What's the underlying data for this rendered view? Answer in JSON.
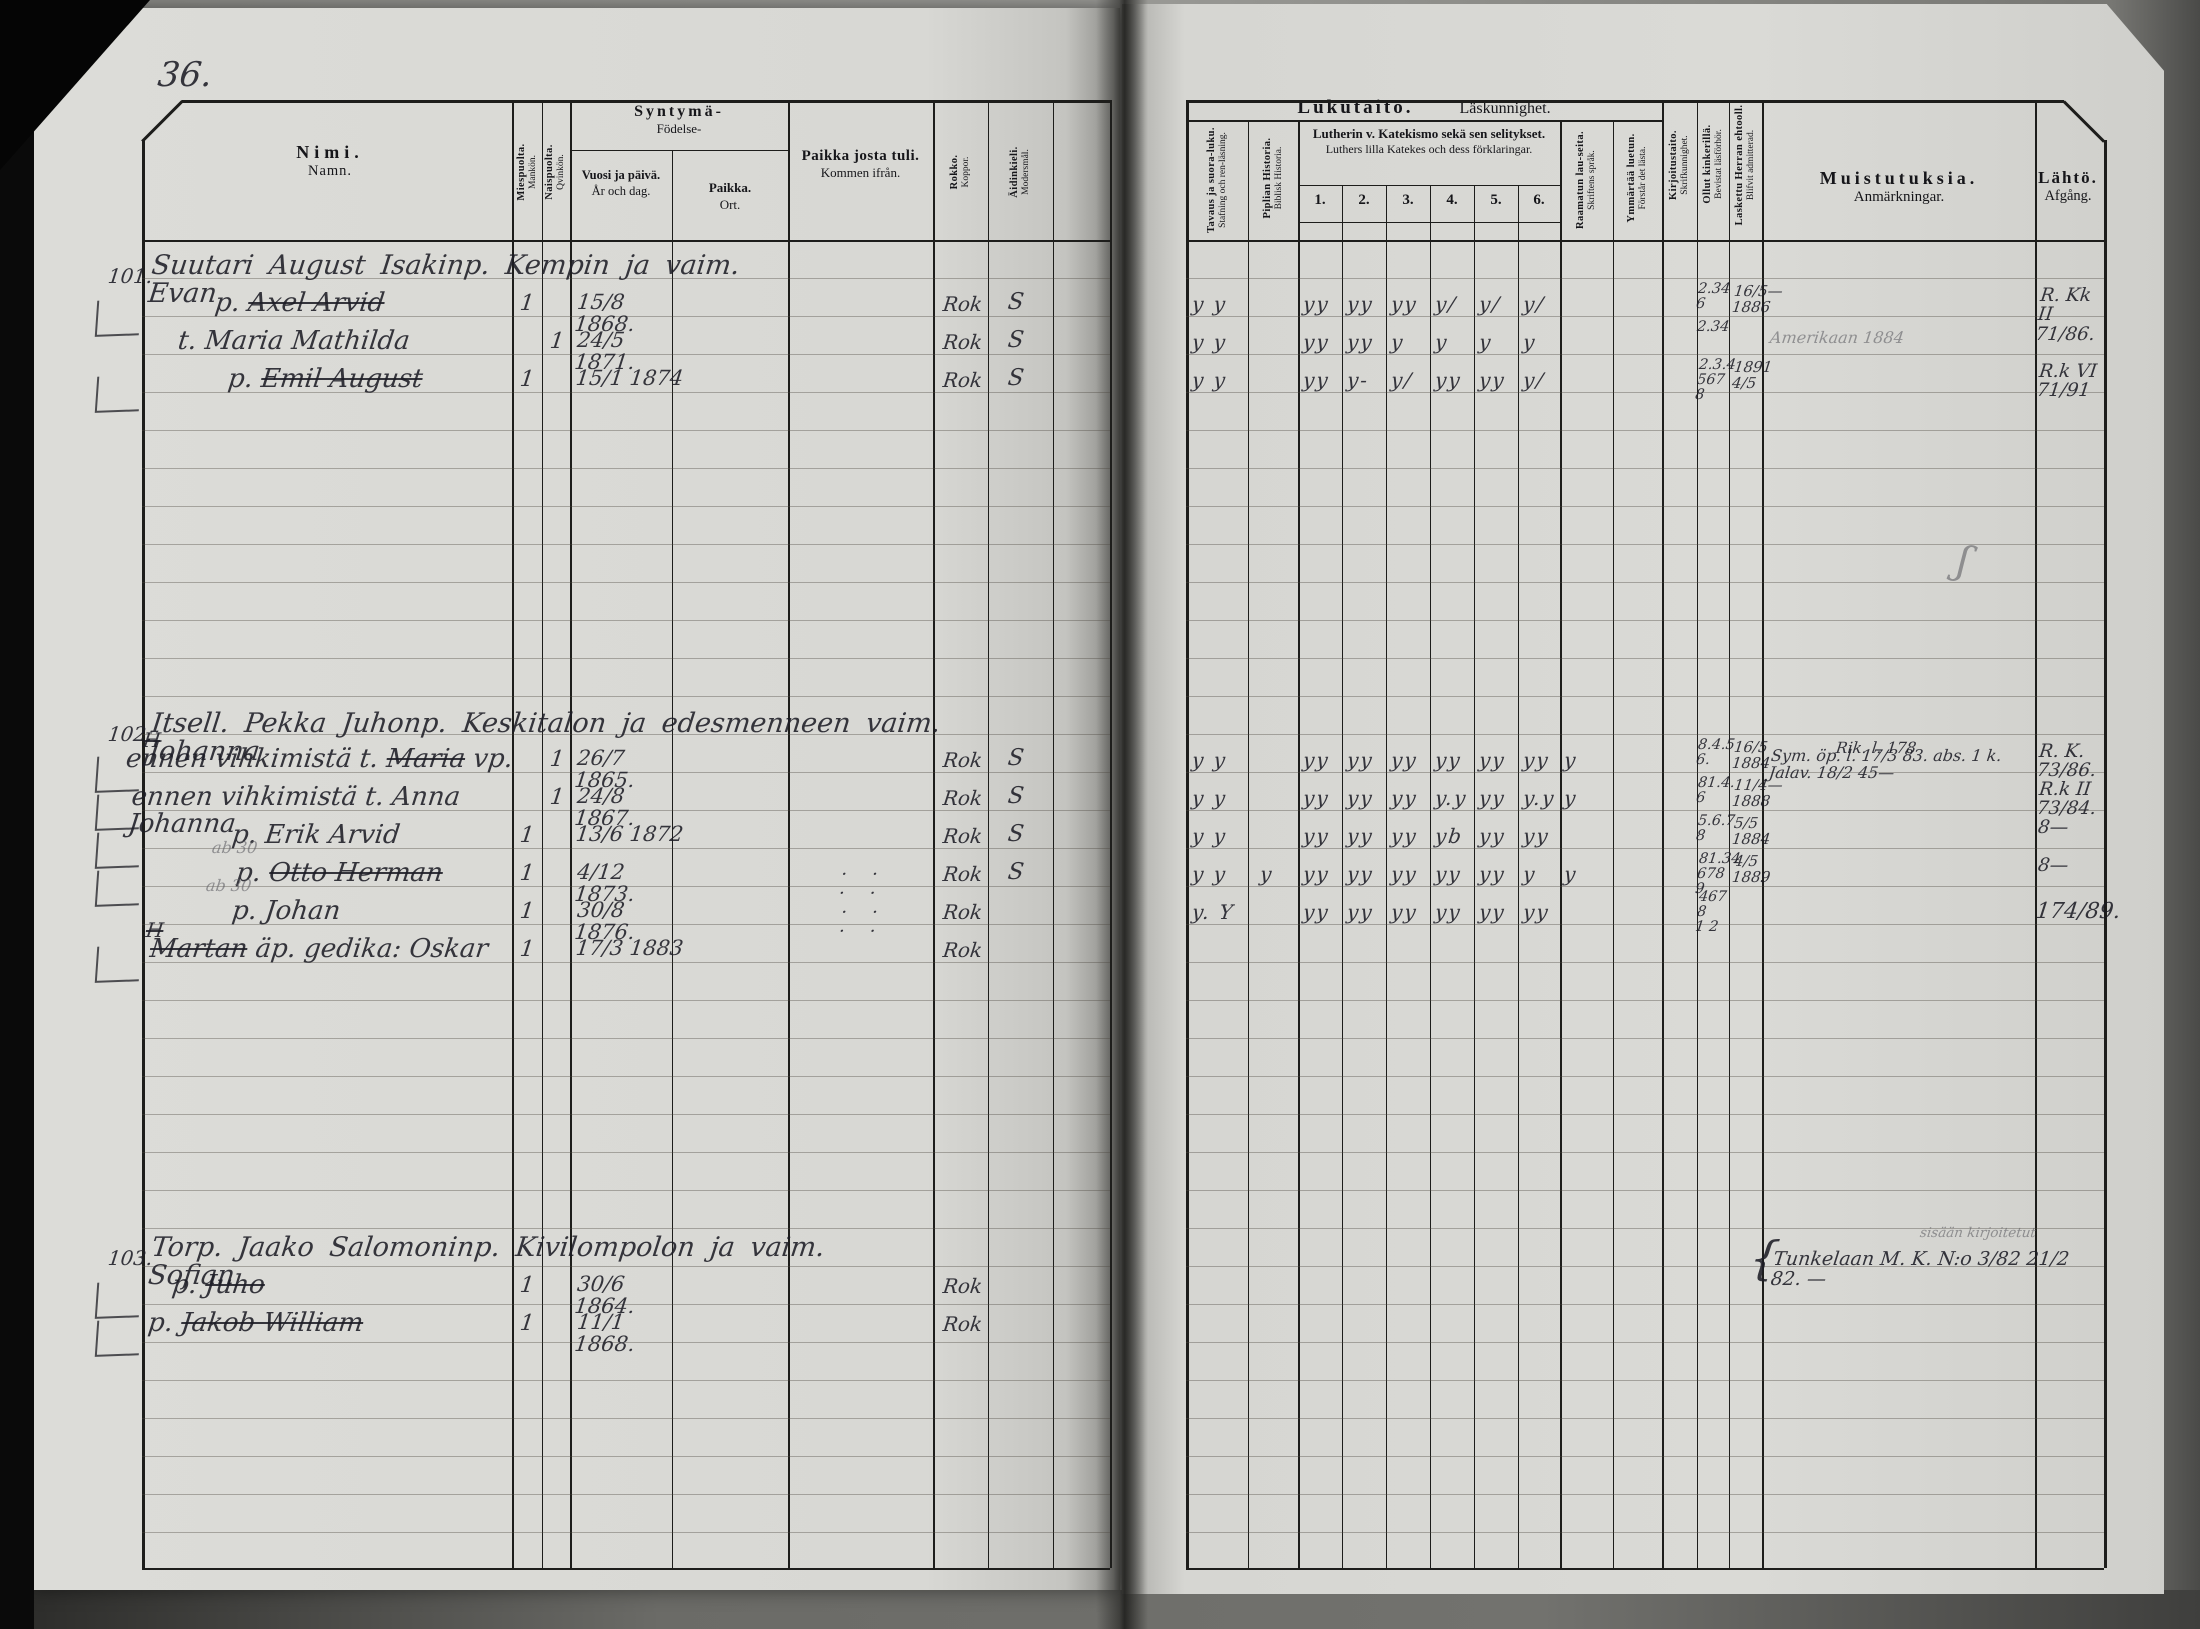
{
  "palette": {
    "page": "#d8d8d4",
    "ink": "rgba(28,28,38,0.88)",
    "pencil": "rgba(98,98,104,0.62)",
    "line": "#1d1d1b"
  },
  "page_number": "36.",
  "left_page_header": {
    "nimi_fi": "Nimi.",
    "nimi_sv": "Namn.",
    "mies_fi": "Miespuolta.",
    "mies_sv": "Mankön.",
    "nais_fi": "Naispuolta.",
    "nais_sv": "Qvinkön.",
    "syntyma_fi": "Syntymä-",
    "syntyma_sv": "Födelse-",
    "vuosi_fi": "Vuosi ja päivä.",
    "vuosi_sv": "År och dag.",
    "paikka_fi": "Paikka.",
    "paikka_sv": "Ort.",
    "tuli_fi": "Paikka josta tuli.",
    "tuli_sv": "Kommen ifrån.",
    "rokko_fi": "Rokko.",
    "rokko_sv": "Koppor.",
    "kieli_fi": "Äidinkieli.",
    "kieli_sv": "Modersmål."
  },
  "right_page_header": {
    "lukutaito_fi": "Lukutaito.",
    "lukutaito_sv": "Läskunnighet.",
    "tavaus_fi": "Tavaus ja suora-luku.",
    "tavaus_sv": "Stafning och ren-läsning.",
    "piplia_fi": "Piplian Historia.",
    "piplia_sv": "Biblisk Historia.",
    "katekismo_fi": "Lutherin v. Katekismo sekä sen selitykset.",
    "katekismo_sv": "Luthers lilla Katekes och dess förklaringar.",
    "kat_cols": [
      "1.",
      "2.",
      "3.",
      "4.",
      "5.",
      "6."
    ],
    "raamattu_fi": "Raamatun lau-seita.",
    "raamattu_sv": "Skriftens språk.",
    "ymmartaa_fi": "Ymmärtää luetun.",
    "ymmartaa_sv": "Förstår det lästa.",
    "kirjoitus_fi": "Kirjoitustaito.",
    "kirjoitus_sv": "Skrifkunnighet.",
    "kinkerit_fi": "Ollut kinkerillä.",
    "kinkerit_sv": "Bevistat läsförhör.",
    "ehtoollinen_fi": "Laskettu Herran ehtooll.",
    "ehtoollinen_sv": "Blifvit admitterad.",
    "muistutuksia_fi": "Muistutuksia.",
    "muistutuksia_sv": "Anmärkningar.",
    "lahto_fi": "Lähtö.",
    "lahto_sv": "Afgång."
  },
  "entries": [
    {
      "number": "101.",
      "heading": "Suutari August Isakinp. Kempin ja vaim. Evan",
      "members": [
        {
          "name_pre": "p. ",
          "name_struck": "Axel Arvid",
          "name_post": "",
          "sex": "m",
          "tally": "1",
          "born": "15/8 1868.",
          "rokko": "Rok",
          "modersmal": "S",
          "bracket": true,
          "marks": {
            "tavaus": "y y",
            "piplia": "",
            "katekismo": [
              "yy",
              "yy",
              "yy",
              "y/",
              "y/",
              "y/"
            ],
            "raamattu": "",
            "kinkerit": "2.34\n6",
            "ehtoollinen": "16/5—\n1886"
          },
          "muistutus": "",
          "muistutus_pencil": false,
          "lahto": "R. Kk II\n71/86.",
          "dots": false
        },
        {
          "name_pre": "t. Maria Mathilda",
          "name_struck": "",
          "name_post": "",
          "sex": "f",
          "tally": "1",
          "born": "24/5 1871.",
          "rokko": "Rok",
          "modersmal": "S",
          "bracket": false,
          "marks": {
            "tavaus": "y y",
            "piplia": "",
            "katekismo": [
              "yy",
              "yy",
              "y",
              "y",
              "y",
              "y"
            ],
            "raamattu": "",
            "kinkerit": "2.34",
            "ehtoollinen": ""
          },
          "muistutus": "Amerikaan 1884",
          "muistutus_pencil": true,
          "lahto": "",
          "dots": false
        },
        {
          "name_pre": "p. ",
          "name_struck": "Emil August",
          "name_post": "",
          "sex": "m",
          "tally": "1",
          "born": "15/1 1874",
          "rokko": "Rok",
          "modersmal": "S",
          "bracket": true,
          "marks": {
            "tavaus": "y y",
            "piplia": "",
            "katekismo": [
              "yy",
              "y-",
              "y/",
              "yy",
              "yy",
              "y/"
            ],
            "raamattu": "",
            "kinkerit": "2.3.4\n567 8",
            "ehtoollinen": "1891\n4/5"
          },
          "muistutus": "",
          "muistutus_pencil": false,
          "lahto": "R.k VI\n71/91",
          "dots": false
        }
      ]
    },
    {
      "number": "102.",
      "heading": "Itsell. Pekka Juhonp. Keskitalon ja edesmenneen vaim. Johanna",
      "members": [
        {
          "name_pre": "ennen vihkimistä t. ",
          "name_struck": "Maria",
          "name_post": " vp.",
          "sex": "f",
          "tally": "1",
          "born": "26/7 1865.",
          "rokko": "Rok",
          "modersmal": "S",
          "bracket": true,
          "marks": {
            "tavaus": "y y",
            "piplia": "",
            "katekismo": [
              "yy",
              "yy",
              "yy",
              "yy",
              "yy",
              "yy"
            ],
            "raamattu": "y",
            "kinkerit": "8.4.5\n6.",
            "ehtoollinen": "16/5\n1884"
          },
          "muistutus": "Sym. öp. l. 17/3 83. abs. 1 k. Jalav. 18/2 45—",
          "muistutus_pencil": false,
          "lahto": "R. K.\n73/86.",
          "dots": false
        },
        {
          "name_pre": "ennen vihkimistä t. Anna Johanna",
          "name_struck": "",
          "name_post": "",
          "sex": "f",
          "tally": "1",
          "born": "24/8 1867.",
          "rokko": "Rok",
          "modersmal": "S",
          "bracket": true,
          "marks": {
            "tavaus": "y y",
            "piplia": "",
            "katekismo": [
              "yy",
              "yy",
              "yy",
              "y.y",
              "yy",
              "y.y"
            ],
            "raamattu": "y",
            "kinkerit": "81.4.\n6",
            "ehtoollinen": "11/4—\n1888"
          },
          "muistutus": "",
          "muistutus_pencil": false,
          "lahto": "R.k II\n73/84.",
          "dots": false
        },
        {
          "name_pre": "p. Erik Arvid",
          "name_struck": "",
          "name_post": "",
          "sex": "m",
          "tally": "1",
          "born": "13/6 1872",
          "rokko": "Rok",
          "modersmal": "S",
          "bracket": true,
          "marks": {
            "tavaus": "y y",
            "piplia": "",
            "katekismo": [
              "yy",
              "yy",
              "yy",
              "yb",
              "yy",
              "yy"
            ],
            "raamattu": "",
            "kinkerit": "5.6.7\n8",
            "ehtoollinen": "5/5\n1884"
          },
          "muistutus": "",
          "muistutus_pencil": false,
          "lahto": "8—",
          "dots": false
        },
        {
          "name_pre": "p. ",
          "name_struck": "Otto Herman",
          "name_post": "",
          "sex": "m",
          "tally": "1",
          "born": "4/12 1873.",
          "rokko": "Rok",
          "modersmal": "S",
          "bracket": true,
          "marks": {
            "tavaus": "y y",
            "piplia": "y",
            "katekismo": [
              "yy",
              "yy",
              "yy",
              "yy",
              "yy",
              "y"
            ],
            "raamattu": "y",
            "kinkerit": "81.34\n678 9",
            "ehtoollinen": "4/5\n1889"
          },
          "muistutus": "",
          "muistutus_pencil": false,
          "lahto": "8—",
          "dots": true
        },
        {
          "name_pre": "p. Johan",
          "name_struck": "",
          "name_post": "",
          "sex": "m",
          "tally": "1",
          "born": "30/8 1876.",
          "rokko": "Rok",
          "modersmal": "",
          "bracket": false,
          "marks": {
            "tavaus": "y. Y",
            "piplia": "",
            "katekismo": [
              "yy",
              "yy",
              "yy",
              "yy",
              "yy",
              "yy"
            ],
            "raamattu": "",
            "kinkerit": "467 8\n1 2",
            "ehtoollinen": ""
          },
          "muistutus": "",
          "muistutus_pencil": false,
          "lahto": "",
          "dots": true
        },
        {
          "name_pre": "",
          "name_struck": "Martan",
          "name_post": " äp. gedika: Oskar",
          "sex": "m",
          "tally": "1",
          "born": "17/3 1883",
          "rokko": "Rok",
          "modersmal": "",
          "bracket": true,
          "marks": {
            "tavaus": "",
            "piplia": "",
            "katekismo": [
              "",
              "",
              "",
              "",
              "",
              ""
            ],
            "raamattu": "",
            "kinkerit": "",
            "ehtoollinen": ""
          },
          "muistutus": "",
          "muistutus_pencil": false,
          "lahto": "",
          "dots": false
        }
      ]
    },
    {
      "number": "103.",
      "heading": "Torp. Jaako Salomoninp. Kivilompolon ja vaim. Sofian",
      "members": [
        {
          "name_pre": "p. ",
          "name_struck": "Juho",
          "name_post": "",
          "sex": "m",
          "tally": "1",
          "born": "30/6 1864.",
          "rokko": "Rok",
          "modersmal": "",
          "bracket": true,
          "marks": {
            "tavaus": "",
            "piplia": "",
            "katekismo": [
              "",
              "",
              "",
              "",
              "",
              ""
            ],
            "raamattu": "",
            "kinkerit": "",
            "ehtoollinen": ""
          },
          "muistutus": "",
          "muistutus_pencil": false,
          "lahto": "",
          "dots": false
        },
        {
          "name_pre": "p. ",
          "name_struck": "Jakob William",
          "name_post": "",
          "sex": "m",
          "tally": "1",
          "born": "11/1 1868.",
          "rokko": "Rok",
          "modersmal": "",
          "bracket": true,
          "marks": {
            "tavaus": "",
            "piplia": "",
            "katekismo": [
              "",
              "",
              "",
              "",
              "",
              ""
            ],
            "raamattu": "",
            "kinkerit": "",
            "ehtoollinen": ""
          },
          "muistutus": "",
          "muistutus_pencil": false,
          "lahto": "",
          "dots": false
        }
      ]
    }
  ],
  "annotations": [
    {
      "text": "ab 30"
    },
    {
      "text": "ab 30"
    },
    {
      "text": "H"
    },
    {
      "text": "H"
    },
    {
      "text": "174/89."
    },
    {
      "text": "Rik. l. 178"
    },
    {
      "text": "sisään kirjoitetut"
    },
    {
      "text": "Tunkelaan M. K. N:o 3/82 21/2 82. —"
    },
    {
      "text": "{"
    },
    {
      "text": "ʃ"
    }
  ]
}
